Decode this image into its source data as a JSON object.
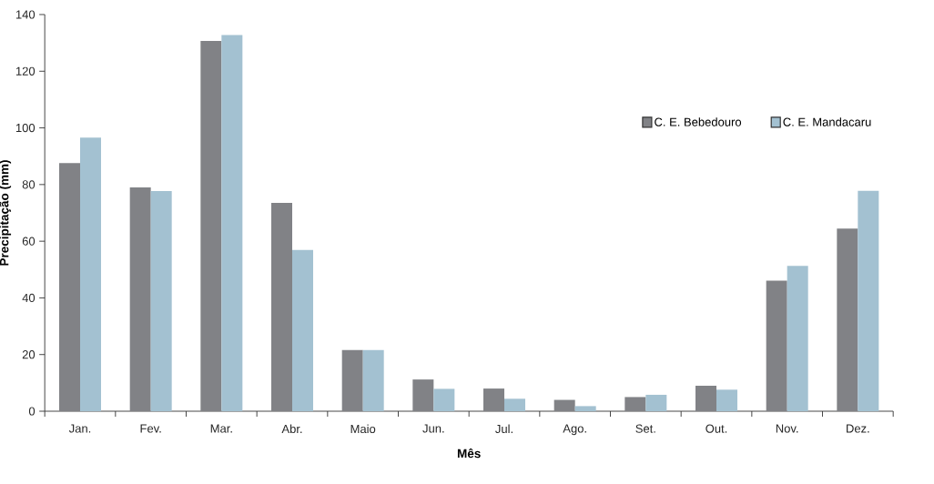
{
  "chart_data": {
    "type": "bar",
    "xlabel": "Mês",
    "ylabel": "Precipitação (mm)",
    "categories": [
      "Jan.",
      "Fev.",
      "Mar.",
      "Abr.",
      "Maio",
      "Jun.",
      "Jul.",
      "Ago.",
      "Set.",
      "Out.",
      "Nov.",
      "Dez."
    ],
    "series": [
      {
        "name": "C. E. Bebedouro",
        "color": "#818286",
        "values": [
          87.6,
          79.0,
          130.7,
          73.5,
          21.6,
          11.2,
          8.0,
          4.0,
          5.0,
          9.0,
          46.1,
          64.5
        ]
      },
      {
        "name": "C. E. Mandacaru",
        "color": "#a3c1d1",
        "values": [
          96.6,
          77.7,
          132.8,
          56.9,
          21.6,
          7.9,
          4.4,
          1.8,
          5.8,
          7.6,
          51.3,
          77.8
        ]
      }
    ],
    "ylim": [
      0,
      140
    ],
    "yticks": [
      0,
      20,
      40,
      60,
      80,
      100,
      120,
      140
    ],
    "grid": false,
    "legend": "top right"
  }
}
